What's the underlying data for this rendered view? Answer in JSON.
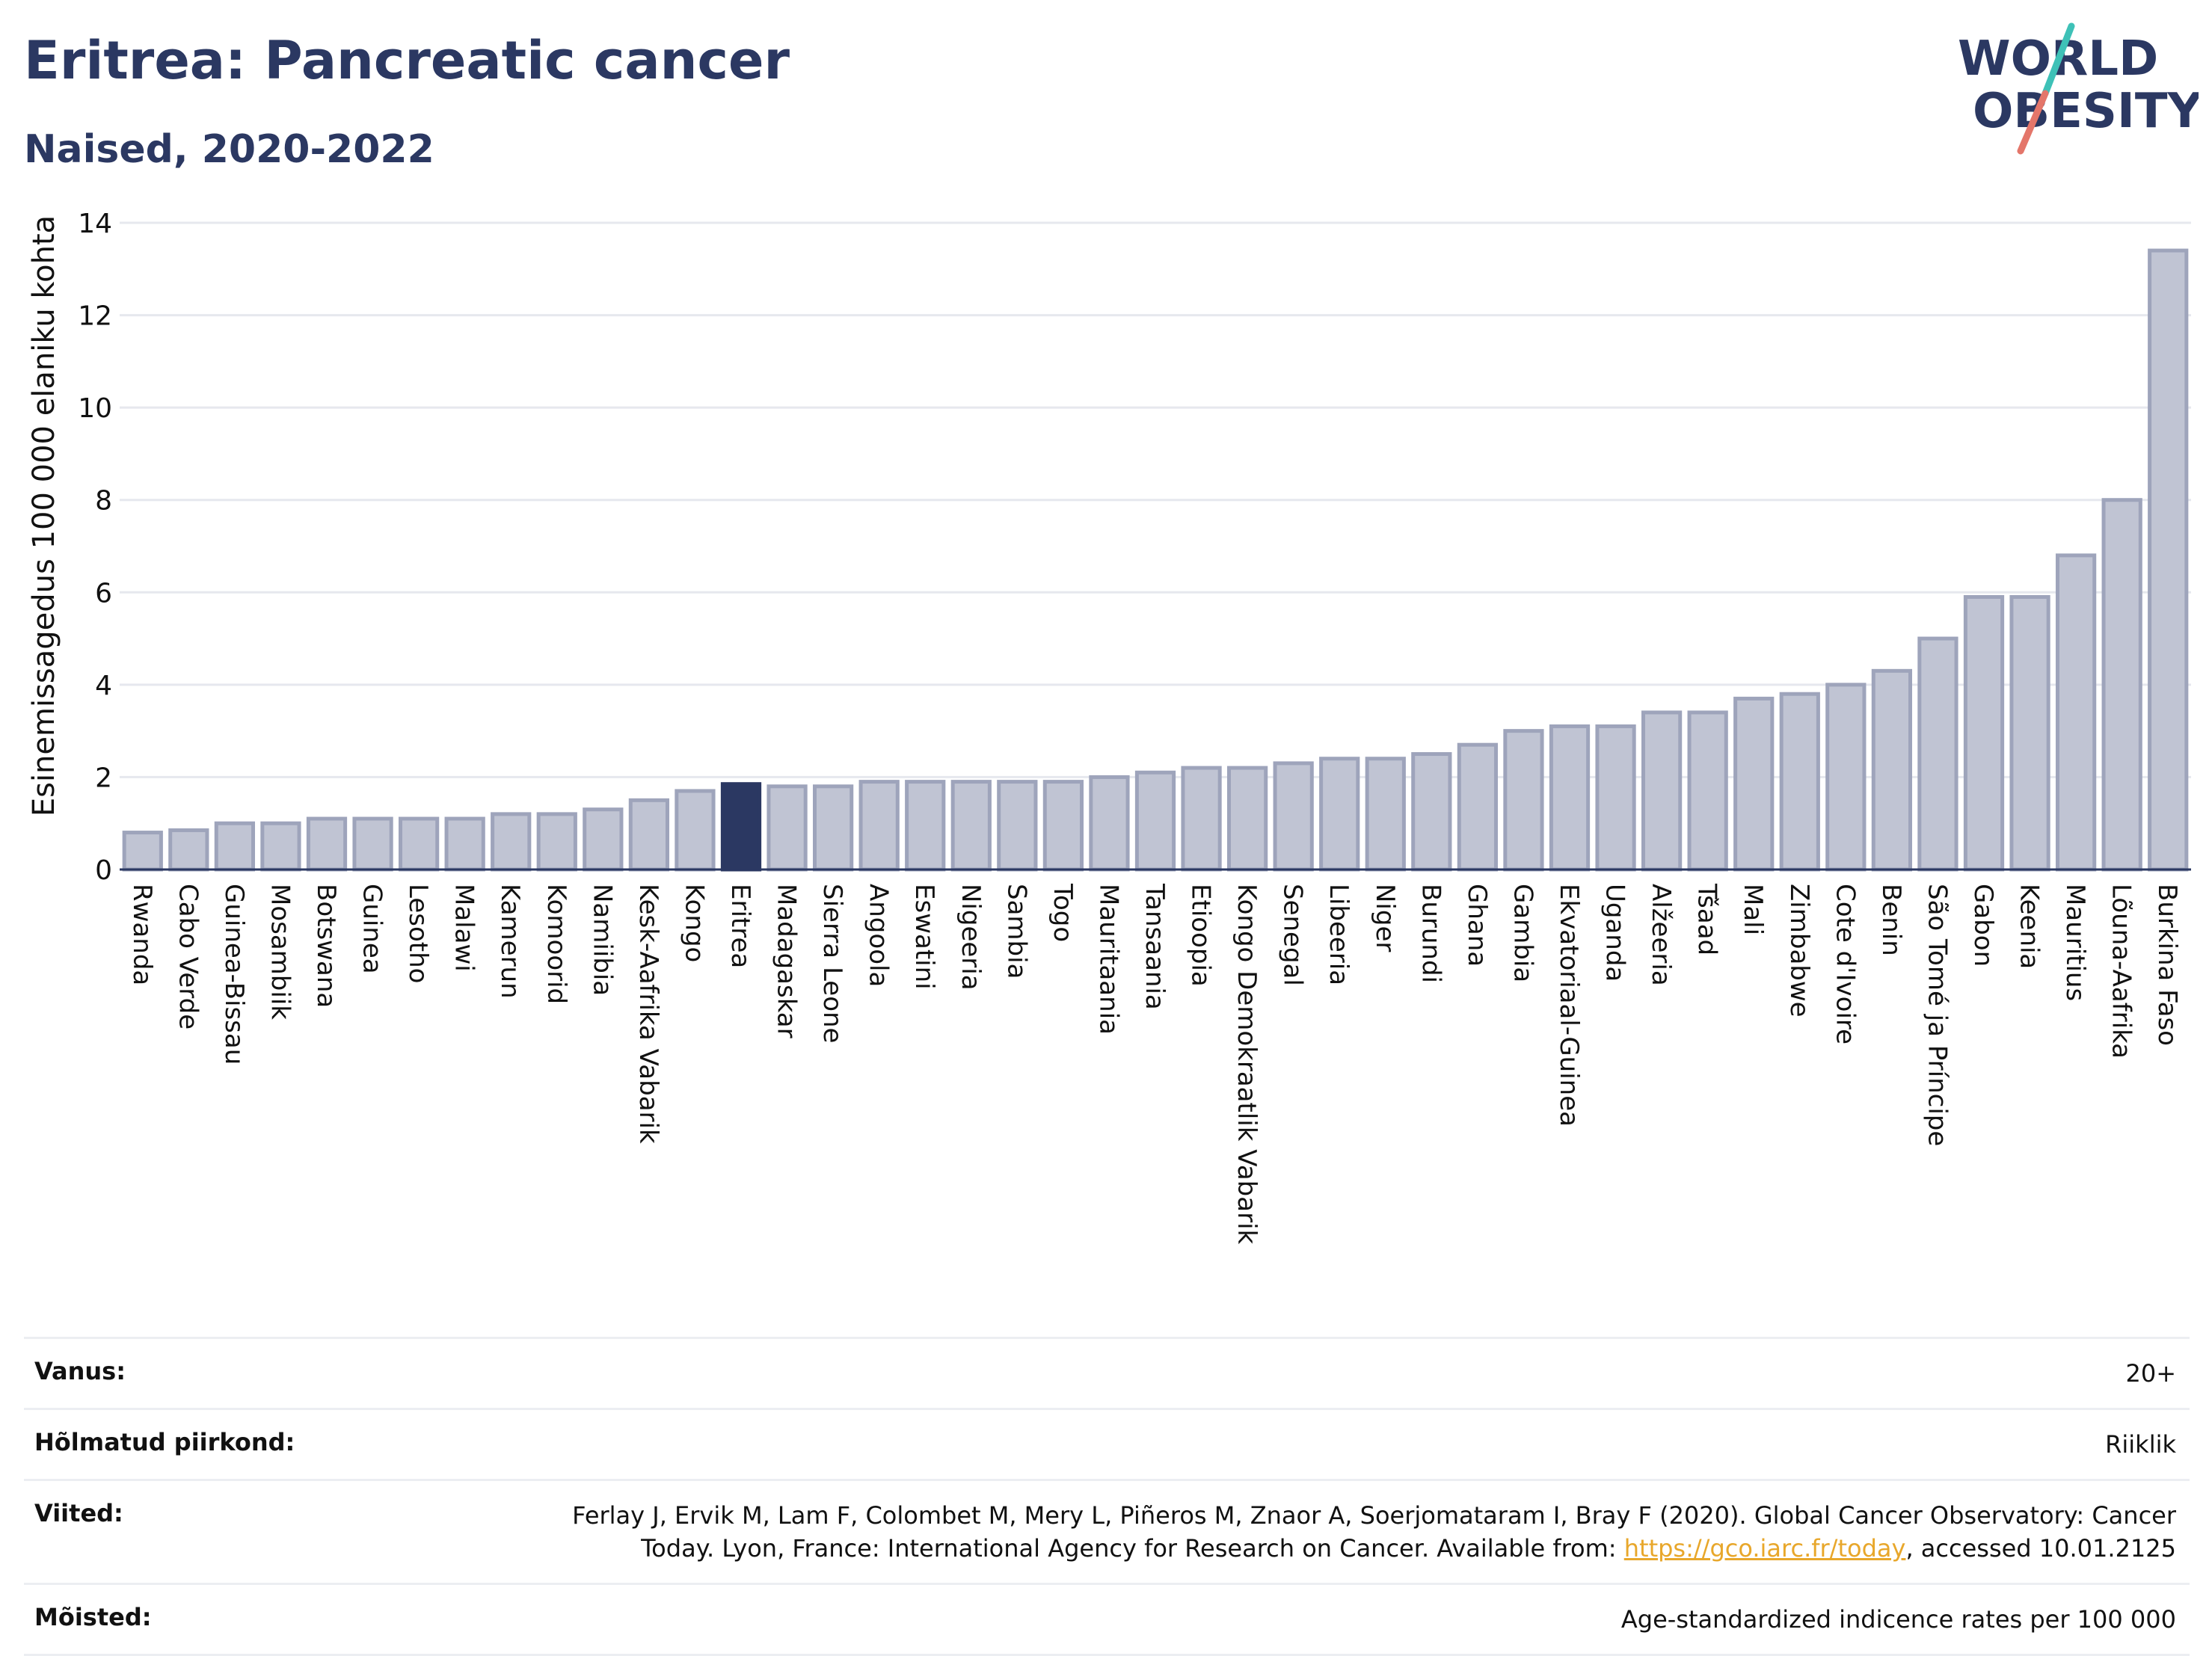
{
  "header": {
    "title": "Eritrea: Pancreatic cancer",
    "subtitle": "Naised, 2020-2022"
  },
  "logo": {
    "line1": "WORLD",
    "line2": "OBESITY",
    "icon": "world-obesity-logo"
  },
  "colors": {
    "accent": "#2b3862",
    "bar": "#c0c4d3",
    "bar_border": "#9ea4bb",
    "link": "#e8a72b",
    "logo_teal": "#3ec1b7",
    "logo_coral": "#e4766a"
  },
  "chart_data": {
    "type": "bar",
    "ylabel": "Esinemissagedus 100 000 elaniku kohta",
    "ylim": [
      0,
      14
    ],
    "yticks": [
      0,
      2,
      4,
      6,
      8,
      10,
      12,
      14
    ],
    "grid": true,
    "highlight": "Eritrea",
    "categories": [
      "Rwanda",
      "Cabo Verde",
      "Guinea-Bissau",
      "Mosambiik",
      "Botswana",
      "Guinea",
      "Lesotho",
      "Malawi",
      "Kamerun",
      "Komoorid",
      "Namiibia",
      "Kesk-Aafrika Vabarik",
      "Kongo",
      "Eritrea",
      "Madagaskar",
      "Sierra Leone",
      "Angoola",
      "Eswatini",
      "Nigeeria",
      "Sambia",
      "Togo",
      "Mauritaania",
      "Tansaania",
      "Etioopia",
      "Kongo Demokraatlik Vabarik",
      "Senegal",
      "Libeeria",
      "Niger",
      "Burundi",
      "Ghana",
      "Gambia",
      "Ekvatoriaal-Guinea",
      "Uganda",
      "Alžeeria",
      "Tšaad",
      "Mali",
      "Zimbabwe",
      "Cote d'Ivoire",
      "Benin",
      "São Tomé ja Príncipe",
      "Gabon",
      "Keenia",
      "Mauritius",
      "Lõuna-Aafrika",
      "Burkina Faso"
    ],
    "values": [
      0.8,
      0.85,
      1.0,
      1.0,
      1.1,
      1.1,
      1.1,
      1.1,
      1.2,
      1.2,
      1.3,
      1.5,
      1.7,
      1.85,
      1.8,
      1.8,
      1.9,
      1.9,
      1.9,
      1.9,
      1.9,
      2.0,
      2.1,
      2.2,
      2.2,
      2.3,
      2.4,
      2.4,
      2.5,
      2.7,
      3.0,
      3.1,
      3.1,
      3.4,
      3.4,
      3.7,
      3.8,
      4.0,
      4.3,
      5.0,
      5.9,
      5.9,
      6.8,
      8.0,
      13.4
    ]
  },
  "meta": {
    "rows": [
      {
        "label": "Vanus:",
        "value": "20+"
      },
      {
        "label": "Hõlmatud piirkond:",
        "value": "Riiklik"
      },
      {
        "label": "Viited:",
        "value_line1": "Ferlay J, Ervik M, Lam F, Colombet M, Mery L, Piñeros M, Znaor A, Soerjomataram I, Bray F (2020). Global Cancer Observatory: Cancer",
        "value_line2_pre": "Today. Lyon, France: International Agency for Research on Cancer. Available from: ",
        "link": "https://gco.iarc.fr/today",
        "value_line2_post": ", accessed 10.01.2125"
      },
      {
        "label": "Mõisted:",
        "value": "Age-standardized indicence rates per 100 000"
      }
    ]
  }
}
